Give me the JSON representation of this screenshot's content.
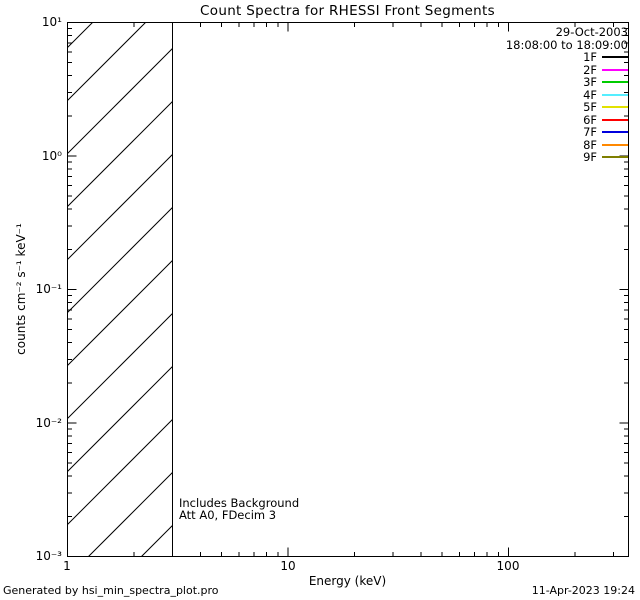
{
  "chart_data": {
    "type": "line",
    "title": "Count Spectra for RHESSI Front Segments",
    "xlabel": "Energy (keV)",
    "ylabel": "counts cm⁻² s⁻¹ keV⁻¹",
    "xscale": "log",
    "yscale": "log",
    "xlim": [
      1,
      350
    ],
    "ylim": [
      0.001,
      10
    ],
    "x_ticks": [
      {
        "value": 1,
        "label": "1"
      },
      {
        "value": 10,
        "label": "10"
      },
      {
        "value": 100,
        "label": "100"
      }
    ],
    "y_ticks": [
      {
        "value": 10,
        "label": "10¹"
      },
      {
        "value": 1,
        "label": "10⁰"
      },
      {
        "value": 0.1,
        "label": "10⁻¹"
      },
      {
        "value": 0.01,
        "label": "10⁻²"
      },
      {
        "value": 0.001,
        "label": "10⁻³"
      }
    ],
    "hatched_region": {
      "xmin": 1,
      "xmax": 3,
      "style": "45deg-diagonal-hatch"
    },
    "series": [],
    "series_note": "No spectrum curves are drawn in the plot area; the legend lists the detector segments only.",
    "legend": {
      "date": "29-Oct-2003",
      "time_range": "18:08:00 to 18:09:00",
      "entries": [
        {
          "label": "1F",
          "color": "#000000"
        },
        {
          "label": "2F",
          "color": "#ff00ff"
        },
        {
          "label": "3F",
          "color": "#00cc00"
        },
        {
          "label": "4F",
          "color": "#55eeff"
        },
        {
          "label": "5F",
          "color": "#e2e200"
        },
        {
          "label": "6F",
          "color": "#ff0000"
        },
        {
          "label": "7F",
          "color": "#0000dd"
        },
        {
          "label": "8F",
          "color": "#ff8800"
        },
        {
          "label": "9F",
          "color": "#7f7f00"
        }
      ]
    },
    "annotations": [
      "Includes Background",
      "Att A0, FDecim 3"
    ]
  },
  "footer": {
    "generated_by": "Generated by hsi_min_spectra_plot.pro",
    "timestamp": "11-Apr-2023 19:24"
  }
}
